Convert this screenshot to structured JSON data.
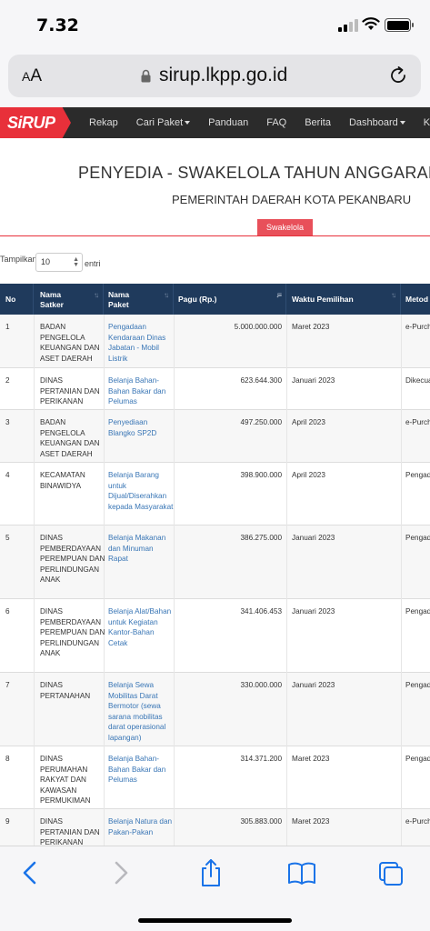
{
  "status": {
    "time": "7.32"
  },
  "browser": {
    "aa_small": "A",
    "aa_big": "A",
    "url": "sirup.lkpp.go.id"
  },
  "site": {
    "logo": "SiRUP",
    "nav": [
      {
        "label": "Rekap",
        "dropdown": false
      },
      {
        "label": "Cari Paket",
        "dropdown": true
      },
      {
        "label": "Panduan",
        "dropdown": false
      },
      {
        "label": "FAQ",
        "dropdown": false
      },
      {
        "label": "Berita",
        "dropdown": false
      },
      {
        "label": "Dashboard",
        "dropdown": true
      },
      {
        "label": "Konta",
        "dropdown": false
      }
    ],
    "title": "PENYEDIA - SWAKELOLA TAHUN ANGGARAN",
    "subtitle": "PEMERINTAH DAERAH KOTA PEKANBARU",
    "tab_button": "Swakelola",
    "show_label": "Tampilkan",
    "page_size": "10",
    "entries_label": "entri"
  },
  "table": {
    "headers": {
      "no": "No",
      "satker": "Nama Satker",
      "paket": "Nama Paket",
      "pagu": "Pagu (Rp.)",
      "waktu": "Waktu Pemilihan",
      "metode": "Metod"
    },
    "rows": [
      {
        "no": "1",
        "satker": "BADAN PENGELOLA KEUANGAN DAN ASET DAERAH",
        "paket": "Pengadaan Kendaraan Dinas Jabatan - Mobil Listrik",
        "pagu": "5.000.000.000",
        "waktu": "Maret 2023",
        "metode": "e-Purch"
      },
      {
        "no": "2",
        "satker": "DINAS PERTANIAN DAN PERIKANAN",
        "paket": "Belanja Bahan-Bahan Bakar dan Pelumas",
        "pagu": "623.644.300",
        "waktu": "Januari 2023",
        "metode": "Dikecua"
      },
      {
        "no": "3",
        "satker": "BADAN PENGELOLA KEUANGAN DAN ASET DAERAH",
        "paket": "Penyediaan Blangko SP2D",
        "pagu": "497.250.000",
        "waktu": "April 2023",
        "metode": "e-Purch"
      },
      {
        "no": "4",
        "satker": "KECAMATAN BINAWIDYA",
        "paket": "Belanja Barang untuk Dijual/Diserahkan kepada Masyarakat",
        "pagu": "398.900.000",
        "waktu": "April 2023",
        "metode": "Pengad"
      },
      {
        "no": "5",
        "satker": "DINAS PEMBERDAYAAN PEREMPUAN DAN PERLINDUNGAN ANAK",
        "paket": "Belanja Makanan dan Minuman Rapat",
        "pagu": "386.275.000",
        "waktu": "Januari 2023",
        "metode": "Pengad"
      },
      {
        "no": "6",
        "satker": "DINAS PEMBERDAYAAN PEREMPUAN DAN PERLINDUNGAN ANAK",
        "paket": "Belanja Alat/Bahan untuk Kegiatan Kantor-Bahan Cetak",
        "pagu": "341.406.453",
        "waktu": "Januari 2023",
        "metode": "Pengad"
      },
      {
        "no": "7",
        "satker": "DINAS PERTANAHAN",
        "paket": "Belanja Sewa Mobilitas Darat Bermotor (sewa sarana mobilitas darat operasional lapangan)",
        "pagu": "330.000.000",
        "waktu": "Januari 2023",
        "metode": "Pengad"
      },
      {
        "no": "8",
        "satker": "DINAS PERUMAHAN RAKYAT DAN KAWASAN PERMUKIMAN",
        "paket": "Belanja Bahan-Bahan Bakar dan Pelumas",
        "pagu": "314.371.200",
        "waktu": "Maret 2023",
        "metode": "Pengad"
      },
      {
        "no": "9",
        "satker": "DINAS PERTANIAN DAN PERIKANAN",
        "paket": "Belanja Natura dan Pakan-Pakan",
        "pagu": "305.883.000",
        "waktu": "Maret 2023",
        "metode": "e-Purch"
      }
    ]
  }
}
